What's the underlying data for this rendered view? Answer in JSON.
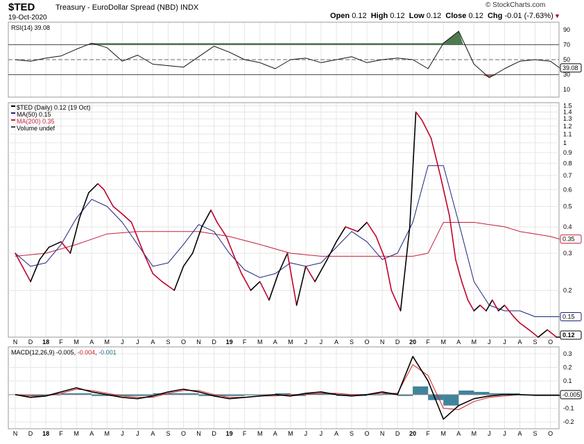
{
  "header": {
    "symbol": "$TED",
    "name": "Treasury - EuroDollar Spread (NBD)",
    "exchange": "INDX",
    "date": "19-Oct-2020",
    "brand": "© StockCharts.com",
    "open_label": "Open",
    "open": "0.12",
    "high_label": "High",
    "high": "0.12",
    "low_label": "Low",
    "low": "0.12",
    "close_label": "Close",
    "close": "0.12",
    "chg_label": "Chg",
    "chg": "-0.01 (-7.63%)",
    "chg_icon": "down-triangle-icon"
  },
  "colors": {
    "price": "#000000",
    "price_down": "#c0002a",
    "ma50": "#1a237e",
    "ma200": "#c41e3a",
    "rsi_high_fill": "#4f7a4f",
    "rsi_low_fill": "#9b6a66",
    "macd": "#000000",
    "signal": "#d62020",
    "histogram": "#1f6f8b"
  },
  "chart_data": [
    {
      "type": "line",
      "panel": "RSI",
      "legend": "RSI(14) 39.08",
      "ylim": [
        0,
        100
      ],
      "y_ticks": [
        10,
        30,
        50,
        70,
        90
      ],
      "reference_lines": [
        30,
        50,
        70
      ],
      "current_value_label": "39.08",
      "x_ticks": [
        "N",
        "D",
        "18",
        "F",
        "M",
        "A",
        "M",
        "J",
        "J",
        "A",
        "S",
        "O",
        "N",
        "D",
        "19",
        "F",
        "M",
        "A",
        "M",
        "J",
        "J",
        "A",
        "S",
        "O",
        "N",
        "D",
        "20",
        "F",
        "M",
        "A",
        "M",
        "J",
        "J",
        "A",
        "S",
        "O"
      ],
      "x": [
        0,
        1,
        2,
        3,
        4,
        5,
        6,
        7,
        8,
        9,
        10,
        11,
        12,
        13,
        14,
        15,
        16,
        17,
        18,
        19,
        20,
        21,
        22,
        23,
        24,
        25,
        26,
        27,
        28,
        29,
        30,
        31,
        32,
        33,
        34,
        35,
        35.6
      ],
      "values": [
        50,
        48,
        52,
        55,
        64,
        72,
        66,
        48,
        56,
        44,
        42,
        40,
        54,
        68,
        60,
        50,
        46,
        38,
        50,
        52,
        46,
        50,
        54,
        46,
        50,
        52,
        50,
        38,
        72,
        88,
        44,
        26,
        38,
        48,
        50,
        48,
        39
      ]
    },
    {
      "type": "line",
      "panel": "Price",
      "scale": "log",
      "legend": [
        "$TED (Daily) 0.12 (19 Oct)",
        "MA(50) 0.15",
        "MA(200) 0.35",
        "Volume undef"
      ],
      "ylim": [
        0.12,
        1.55
      ],
      "y_ticks": [
        0.2,
        0.3,
        0.4,
        0.5,
        0.6,
        0.7,
        0.8,
        0.9,
        1.0,
        1.1,
        1.2,
        1.3,
        1.4,
        1.5
      ],
      "x_ticks": [
        "N",
        "D",
        "18",
        "F",
        "M",
        "A",
        "M",
        "J",
        "J",
        "A",
        "S",
        "O",
        "N",
        "D",
        "19",
        "F",
        "M",
        "A",
        "M",
        "J",
        "J",
        "A",
        "S",
        "O",
        "N",
        "D",
        "20",
        "F",
        "M",
        "A",
        "M",
        "J",
        "J",
        "A",
        "S",
        "O"
      ],
      "series": [
        {
          "name": "$TED (Daily) 0.12 (19 Oct)",
          "x": [
            0,
            1,
            1.6,
            2.2,
            3,
            3.6,
            4.2,
            4.8,
            5.4,
            5.8,
            6.4,
            7,
            7.6,
            8.4,
            9,
            9.6,
            10.4,
            11,
            11.6,
            12.2,
            12.8,
            13.2,
            13.8,
            14.4,
            14.8,
            15.4,
            16,
            16.6,
            17.2,
            17.8,
            18.4,
            19,
            19.6,
            20.4,
            21,
            21.6,
            22.4,
            23,
            23.6,
            24.2,
            24.6,
            25.2,
            25.8,
            26.2,
            26.6,
            27.2,
            27.8,
            28.4,
            28.8,
            29.2,
            29.6,
            30,
            30.4,
            30.8,
            31.2,
            31.6,
            32,
            32.6,
            33,
            33.6,
            34.2,
            34.8,
            35.4,
            35.6
          ],
          "values": [
            0.3,
            0.22,
            0.28,
            0.32,
            0.34,
            0.3,
            0.44,
            0.58,
            0.64,
            0.6,
            0.5,
            0.46,
            0.42,
            0.3,
            0.24,
            0.22,
            0.2,
            0.26,
            0.3,
            0.4,
            0.48,
            0.42,
            0.36,
            0.28,
            0.24,
            0.2,
            0.22,
            0.18,
            0.24,
            0.3,
            0.17,
            0.26,
            0.22,
            0.28,
            0.34,
            0.4,
            0.38,
            0.42,
            0.36,
            0.28,
            0.2,
            0.16,
            0.4,
            1.4,
            1.28,
            1.05,
            0.7,
            0.45,
            0.28,
            0.22,
            0.18,
            0.16,
            0.17,
            0.16,
            0.18,
            0.16,
            0.17,
            0.15,
            0.14,
            0.13,
            0.12,
            0.13,
            0.12,
            0.12
          ]
        },
        {
          "name": "MA(50) 0.15",
          "x": [
            0,
            1,
            2,
            3,
            4,
            5,
            6,
            7,
            8,
            9,
            10,
            11,
            12,
            13,
            14,
            15,
            16,
            17,
            18,
            19,
            20,
            21,
            22,
            23,
            24,
            25,
            26,
            27,
            28,
            29,
            30,
            31,
            32,
            33,
            34,
            35,
            35.6
          ],
          "values": [
            0.3,
            0.26,
            0.27,
            0.33,
            0.44,
            0.54,
            0.5,
            0.42,
            0.33,
            0.26,
            0.27,
            0.33,
            0.41,
            0.38,
            0.3,
            0.25,
            0.23,
            0.24,
            0.27,
            0.26,
            0.27,
            0.32,
            0.38,
            0.34,
            0.28,
            0.3,
            0.42,
            0.78,
            0.78,
            0.42,
            0.22,
            0.17,
            0.16,
            0.16,
            0.15,
            0.15,
            0.15
          ]
        },
        {
          "name": "MA(200) 0.35",
          "x": [
            0,
            2,
            4,
            6,
            8,
            10,
            12,
            14,
            16,
            18,
            20,
            22,
            24,
            26,
            27,
            28,
            29,
            30,
            31,
            32,
            33,
            34,
            35,
            35.6
          ],
          "values": [
            0.29,
            0.3,
            0.33,
            0.37,
            0.38,
            0.38,
            0.38,
            0.36,
            0.33,
            0.3,
            0.29,
            0.29,
            0.29,
            0.29,
            0.3,
            0.42,
            0.42,
            0.42,
            0.41,
            0.4,
            0.38,
            0.37,
            0.36,
            0.35
          ]
        }
      ],
      "price_label": "0.12",
      "ma50_label": "0.15",
      "ma200_label": "0.35"
    },
    {
      "type": "line",
      "panel": "MACD",
      "legend_prefix": "MACD(12,26,9)",
      "legend_macd": "-0.005",
      "legend_signal": "-0.004",
      "legend_hist": "-0.001",
      "ylim": [
        -0.25,
        0.35
      ],
      "y_ticks": [
        -0.2,
        -0.1,
        0.1,
        0.2,
        0.3
      ],
      "current_value_label": "-0.005",
      "x_ticks": [
        "N",
        "D",
        "18",
        "F",
        "M",
        "A",
        "M",
        "J",
        "J",
        "A",
        "S",
        "O",
        "N",
        "D",
        "19",
        "F",
        "M",
        "A",
        "M",
        "J",
        "J",
        "A",
        "S",
        "O",
        "N",
        "D",
        "20",
        "F",
        "M",
        "A",
        "M",
        "J",
        "J",
        "A",
        "S",
        "O"
      ],
      "series": [
        {
          "name": "MACD",
          "x": [
            0,
            1,
            2,
            3,
            4,
            5,
            6,
            7,
            8,
            9,
            10,
            11,
            12,
            13,
            14,
            15,
            16,
            17,
            18,
            19,
            20,
            21,
            22,
            23,
            24,
            25,
            26,
            27,
            28,
            29,
            30,
            31,
            32,
            33,
            34,
            35,
            35.6
          ],
          "values": [
            0.0,
            -0.02,
            -0.01,
            0.02,
            0.05,
            0.02,
            0.0,
            -0.02,
            -0.03,
            -0.01,
            0.02,
            0.04,
            0.02,
            -0.01,
            -0.03,
            -0.02,
            -0.01,
            0.0,
            -0.01,
            0.01,
            0.02,
            0.0,
            -0.01,
            0.0,
            0.02,
            0.0,
            0.28,
            0.1,
            -0.18,
            -0.08,
            -0.03,
            -0.01,
            0.0,
            0.0,
            -0.005,
            -0.005,
            -0.005
          ]
        },
        {
          "name": "Signal",
          "x": [
            0,
            1,
            2,
            3,
            4,
            5,
            6,
            7,
            8,
            9,
            10,
            11,
            12,
            13,
            14,
            15,
            16,
            17,
            18,
            19,
            20,
            21,
            22,
            23,
            24,
            25,
            26,
            27,
            28,
            29,
            30,
            31,
            32,
            33,
            34,
            35,
            35.6
          ],
          "values": [
            0.0,
            -0.01,
            -0.01,
            0.01,
            0.04,
            0.03,
            0.01,
            -0.01,
            -0.02,
            -0.02,
            0.01,
            0.03,
            0.03,
            0.0,
            -0.02,
            -0.02,
            -0.01,
            -0.01,
            0.0,
            0.0,
            0.01,
            0.01,
            0.0,
            0.0,
            0.01,
            0.01,
            0.22,
            0.14,
            -0.1,
            -0.11,
            -0.05,
            -0.02,
            -0.01,
            0.0,
            -0.004,
            -0.004,
            -0.004
          ]
        }
      ]
    }
  ]
}
